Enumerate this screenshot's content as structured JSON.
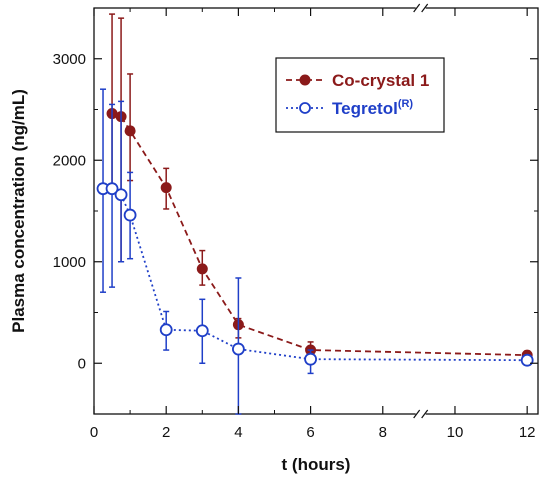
{
  "chart_data": {
    "type": "scatter",
    "xlabel": "t (hours)",
    "ylabel": "Plasma concentration  (ng/mL)",
    "xlim": [
      0,
      12.3
    ],
    "ylim": [
      -500,
      3500
    ],
    "x_ticks": [
      0,
      2,
      4,
      6,
      8,
      10,
      12
    ],
    "y_ticks": [
      0,
      1000,
      2000,
      3000
    ],
    "x_axis_breaks": [
      {
        "from": 6.9,
        "to": 11.2
      }
    ],
    "grid": false,
    "legend_position": "top-right",
    "series": [
      {
        "name": "Co-crystal 1",
        "name_superscript": "",
        "color": "#8b1a1a",
        "line": "dashed",
        "marker": "filled-circle",
        "points": [
          {
            "x": 0.5,
            "y": 2460,
            "err_low": 1750,
            "err_high": 3440
          },
          {
            "x": 0.75,
            "y": 2430,
            "err_low": 1000,
            "err_high": 3400
          },
          {
            "x": 1.0,
            "y": 2290,
            "err_low": 1800,
            "err_high": 2850
          },
          {
            "x": 2.0,
            "y": 1730,
            "err_low": 1520,
            "err_high": 1920
          },
          {
            "x": 3.0,
            "y": 930,
            "err_low": 770,
            "err_high": 1110
          },
          {
            "x": 4.0,
            "y": 380,
            "err_low": 250,
            "err_high": 440
          },
          {
            "x": 6.0,
            "y": 130,
            "err_low": 50,
            "err_high": 210
          },
          {
            "x": 12.0,
            "y": 80,
            "err_low": 40,
            "err_high": 120
          }
        ]
      },
      {
        "name": "Tegretol",
        "name_superscript": "(R)",
        "color": "#1f3fc8",
        "line": "dotted",
        "marker": "open-circle",
        "points": [
          {
            "x": 0.25,
            "y": 1720,
            "err_low": 700,
            "err_high": 2700
          },
          {
            "x": 0.5,
            "y": 1720,
            "err_low": 750,
            "err_high": 2550
          },
          {
            "x": 0.75,
            "y": 1660,
            "err_low": 1000,
            "err_high": 2580
          },
          {
            "x": 1.0,
            "y": 1460,
            "err_low": 1030,
            "err_high": 1880
          },
          {
            "x": 2.0,
            "y": 330,
            "err_low": 130,
            "err_high": 510
          },
          {
            "x": 3.0,
            "y": 320,
            "err_low": 0,
            "err_high": 630
          },
          {
            "x": 4.0,
            "y": 140,
            "err_low": -500,
            "err_high": 840
          },
          {
            "x": 6.0,
            "y": 40,
            "err_low": -100,
            "err_high": 130
          },
          {
            "x": 12.0,
            "y": 30,
            "err_low": 0,
            "err_high": 60
          }
        ]
      }
    ]
  }
}
